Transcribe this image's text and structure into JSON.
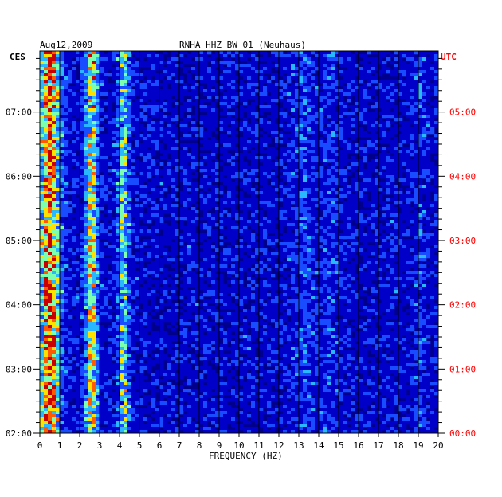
{
  "chart_data": {
    "type": "heatmap",
    "title": "RNHA HHZ BW 01 (Neuhaus)",
    "date": "Aug12,2009",
    "left_timezone": "CES",
    "right_timezone": "UTC",
    "xlabel": "FREQUENCY (HZ)",
    "xlim": [
      0,
      20
    ],
    "x_ticks": [
      "0",
      "1",
      "2",
      "3",
      "4",
      "5",
      "6",
      "7",
      "8",
      "9",
      "10",
      "11",
      "12",
      "13",
      "14",
      "15",
      "16",
      "17",
      "18",
      "19",
      "20"
    ],
    "time_range_ces_hours": [
      2.0,
      7.95
    ],
    "left_time_ticks": [
      {
        "t": 7,
        "label": "07:00"
      },
      {
        "t": 6,
        "label": "06:00"
      },
      {
        "t": 5,
        "label": "05:00"
      },
      {
        "t": 4,
        "label": "04:00"
      },
      {
        "t": 3,
        "label": "03:00"
      },
      {
        "t": 2,
        "label": "02:00"
      }
    ],
    "right_time_ticks": [
      {
        "t": 7,
        "label": "05:00"
      },
      {
        "t": 6,
        "label": "04:00"
      },
      {
        "t": 5,
        "label": "03:00"
      },
      {
        "t": 4,
        "label": "02:00"
      },
      {
        "t": 3,
        "label": "01:00"
      },
      {
        "t": 2,
        "label": "00:00"
      }
    ],
    "dominant_frequency_bands_hz": [
      0.5,
      2.6,
      4.2
    ],
    "colorscale": [
      "#00007a",
      "#0000c8",
      "#1a4cff",
      "#29b8ff",
      "#7dffb0",
      "#ffe100",
      "#ff5a00",
      "#c80000"
    ],
    "grid": true
  },
  "colors": {
    "background": "#00008c",
    "left_axis_text": "#000000",
    "right_axis_text": "#ff0000",
    "grid": "#000000"
  }
}
